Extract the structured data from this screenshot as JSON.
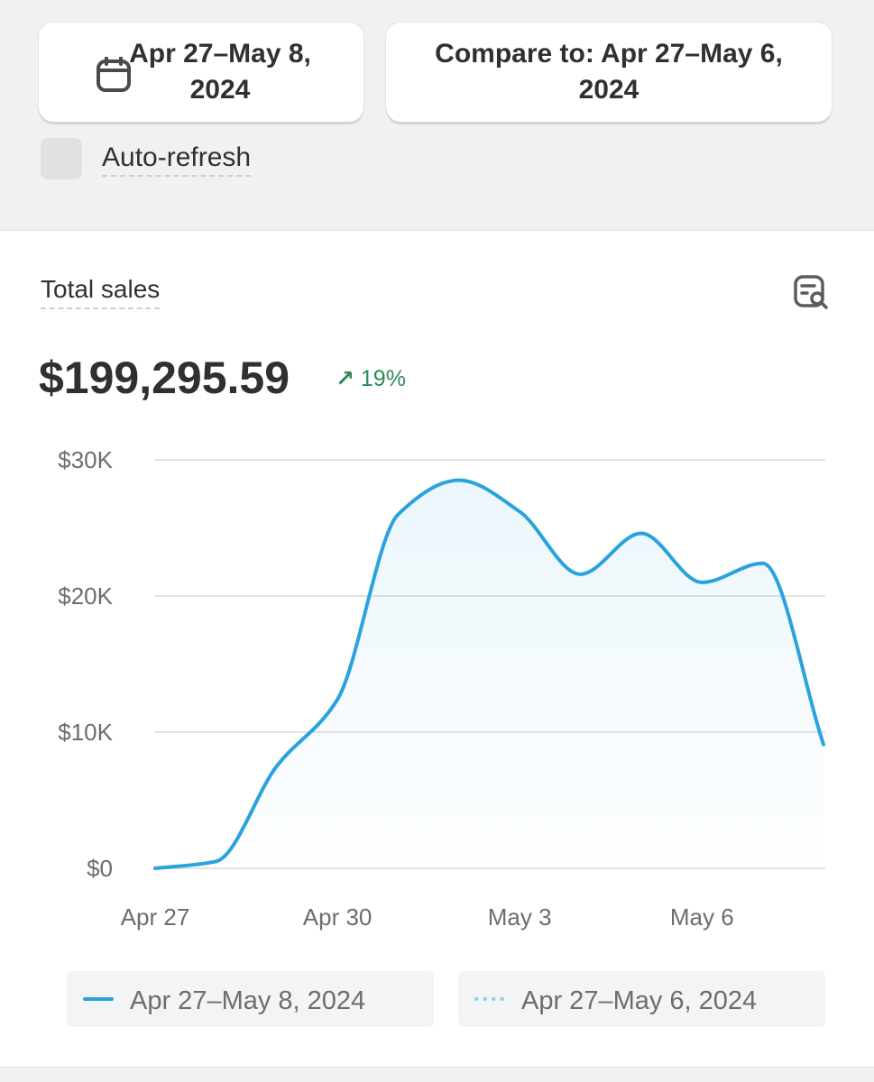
{
  "toolbar": {
    "date_range": "Apr 27–May 8, 2024",
    "compare": "Compare to: Apr 27–May 6, 2024",
    "auto_refresh": "Auto-refresh"
  },
  "card": {
    "title": "Total sales",
    "total": "$199,295.59",
    "change": "19%"
  },
  "chart_data": {
    "type": "line",
    "categories": [
      "Apr 27",
      null,
      null,
      "Apr 30",
      null,
      null,
      "May 3",
      null,
      null,
      "May 6",
      null,
      null
    ],
    "series": [
      {
        "name": "Apr 27–May 8, 2024",
        "color": "#2aa3dc",
        "style": "solid",
        "values": [
          0,
          500,
          7500,
          12400,
          26000,
          28500,
          26200,
          21600,
          24600,
          21000,
          22400,
          9100
        ]
      }
    ],
    "legend": [
      {
        "name": "Apr 27–May 8, 2024",
        "color": "#2aa3dc",
        "style": "solid"
      },
      {
        "name": "Apr 27–May 6, 2024",
        "color": "#8fd0ee",
        "style": "dotted"
      }
    ],
    "ylim": [
      0,
      30000
    ],
    "yticks": [
      {
        "value": 0,
        "label": "$0"
      },
      {
        "value": 10000,
        "label": "$10K"
      },
      {
        "value": 20000,
        "label": "$20K"
      },
      {
        "value": 30000,
        "label": "$30K"
      }
    ],
    "grid": true,
    "area": true
  }
}
